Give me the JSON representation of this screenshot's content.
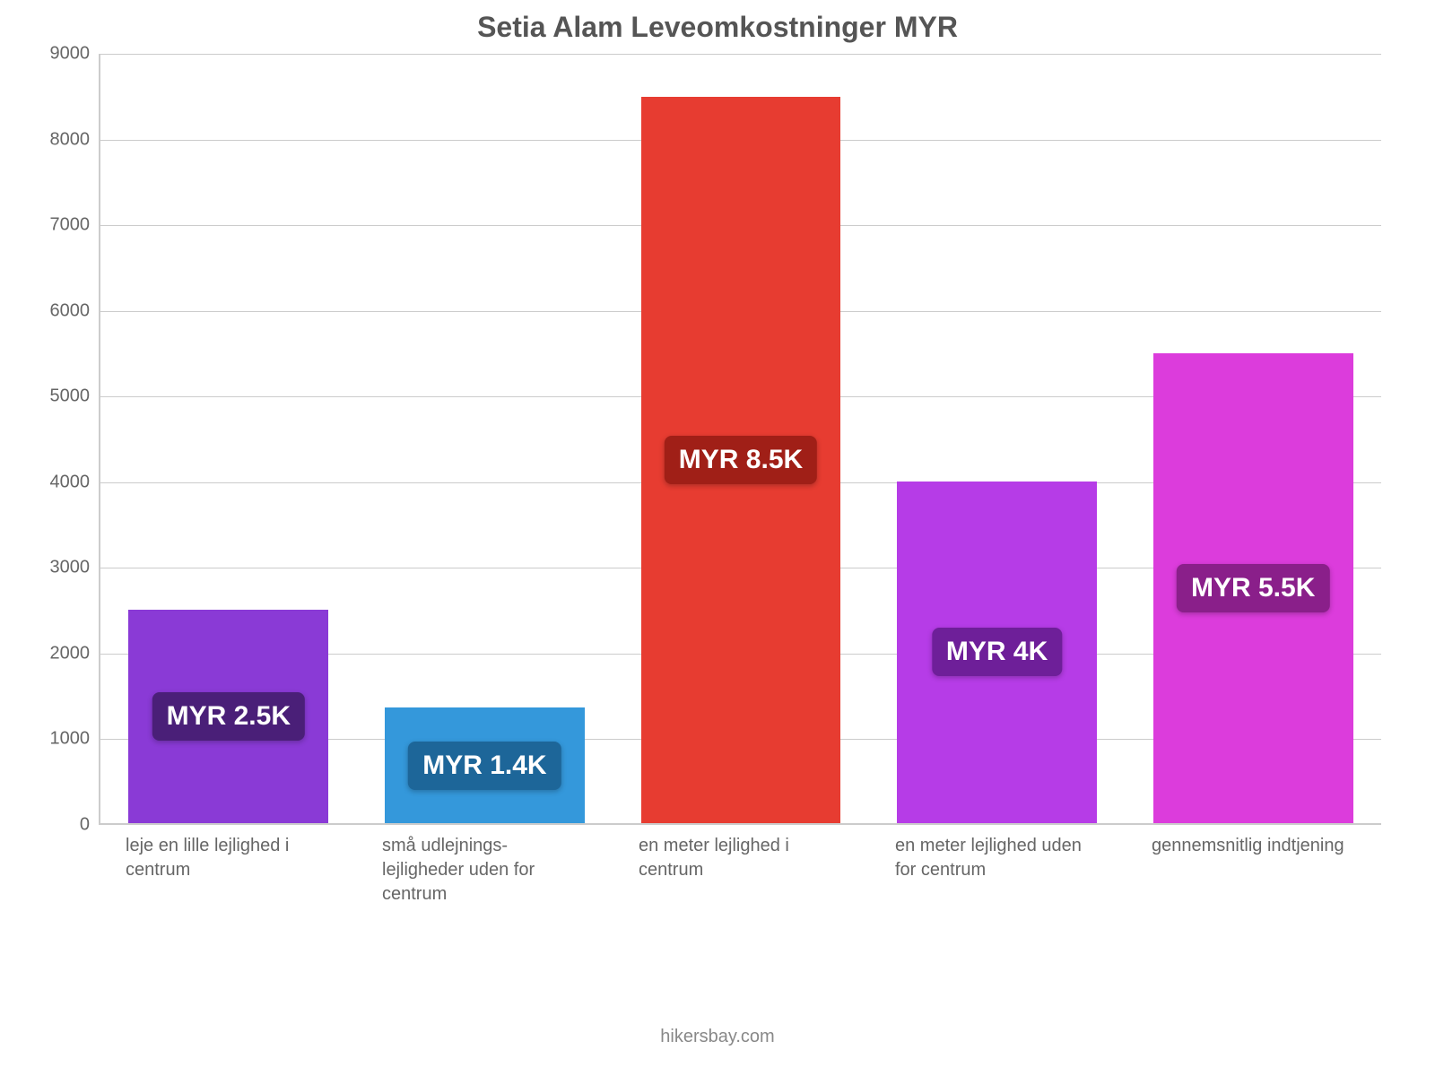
{
  "chart": {
    "type": "bar",
    "title": "Setia Alam Leveomkostninger MYR",
    "title_fontsize": 32,
    "title_color": "#555555",
    "background_color": "#ffffff",
    "grid_color": "#cccccc",
    "axis_color": "#cccccc",
    "label_color": "#666666",
    "label_fontsize": 20,
    "ylim": [
      0,
      9000
    ],
    "ytick_step": 1000,
    "yticks": [
      0,
      1000,
      2000,
      3000,
      4000,
      5000,
      6000,
      7000,
      8000,
      9000
    ],
    "bar_width": 0.78,
    "value_badge_fontsize": 30,
    "attribution": "hikersbay.com",
    "bars": [
      {
        "category": "leje en lille lejlighed i centrum",
        "value": 2500,
        "value_label": "MYR 2.5K",
        "bar_color": "#8a3ad6",
        "badge_color": "#4a1f78"
      },
      {
        "category": "små udlejnings-lejligheder uden for centrum",
        "value": 1350,
        "value_label": "MYR 1.4K",
        "bar_color": "#3498db",
        "badge_color": "#1d6699"
      },
      {
        "category": "en meter lejlighed i centrum",
        "value": 8500,
        "value_label": "MYR 8.5K",
        "bar_color": "#e73c31",
        "badge_color": "#a01f17"
      },
      {
        "category": "en meter lejlighed uden for centrum",
        "value": 4000,
        "value_label": "MYR 4K",
        "bar_color": "#b63ce7",
        "badge_color": "#6e1f99"
      },
      {
        "category": "gennemsnitlig indtjening",
        "value": 5500,
        "value_label": "MYR 5.5K",
        "bar_color": "#dc3cdc",
        "badge_color": "#8a1f8a"
      }
    ]
  }
}
